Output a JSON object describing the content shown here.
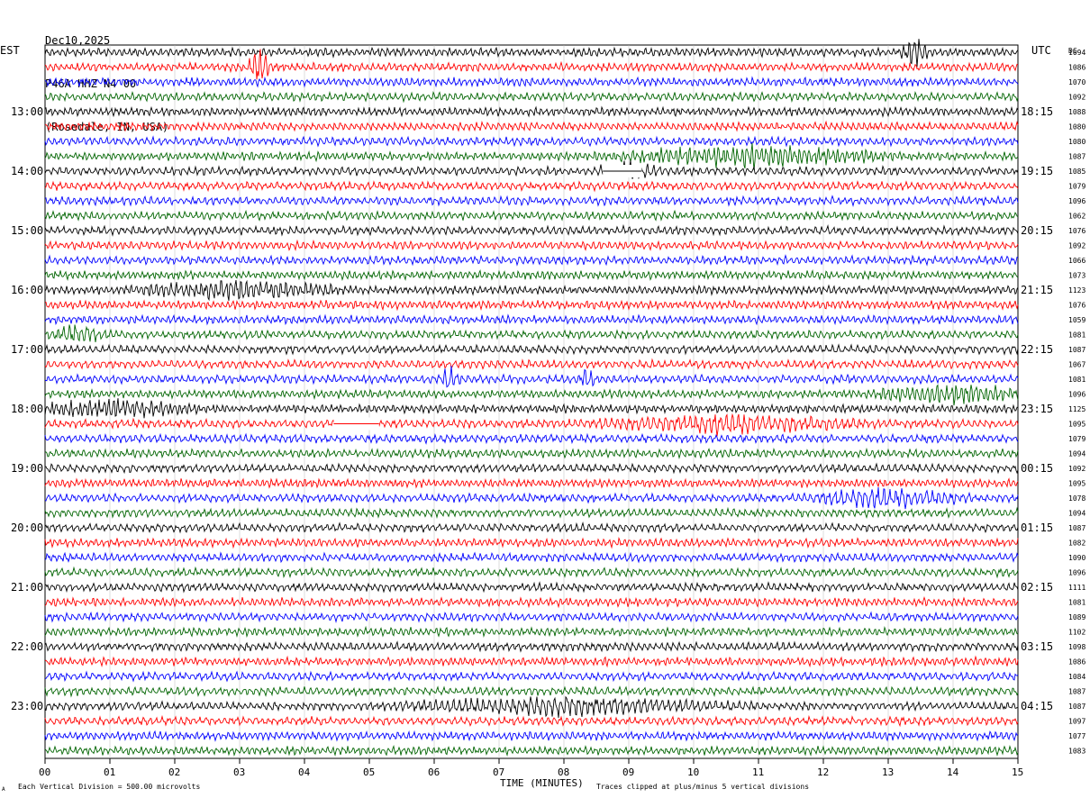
{
  "header": {
    "date": "Dec10,2025",
    "station": "P46A HHZ N4 00",
    "location": "(Rosedale, IN, USA)"
  },
  "left_tz": "EST",
  "right_tz": "UTC",
  "dc_label": "DC",
  "colors": [
    "#000000",
    "#ff0000",
    "#0000ff",
    "#006400"
  ],
  "chart_data": {
    "type": "line",
    "xlabel": "TIME (MINUTES)",
    "x_ticks": [
      "00",
      "01",
      "02",
      "03",
      "04",
      "05",
      "06",
      "07",
      "08",
      "09",
      "10",
      "11",
      "12",
      "13",
      "14",
      "15"
    ],
    "xlim": [
      0,
      15
    ],
    "left_hour_labels": [
      "13:00",
      "14:00",
      "15:00",
      "16:00",
      "17:00",
      "18:00",
      "19:00",
      "20:00",
      "21:00",
      "22:00",
      "23:00"
    ],
    "right_hour_labels": [
      "18:15",
      "19:15",
      "20:15",
      "21:15",
      "22:15",
      "23:15",
      "00:15",
      "01:15",
      "02:15",
      "03:15",
      "04:15"
    ],
    "dc_values": [
      "1094",
      "1086",
      "1070",
      "1092",
      "1088",
      "1080",
      "1080",
      "1087",
      "1085",
      "1079",
      "1096",
      "1062",
      "1076",
      "1092",
      "1066",
      "1073",
      "1123",
      "1076",
      "1059",
      "1081",
      "1087",
      "1067",
      "1081",
      "1096",
      "1125",
      "1095",
      "1079",
      "1094",
      "1092",
      "1095",
      "1078",
      "1094",
      "1087",
      "1082",
      "1090",
      "1096",
      "1111",
      "1081",
      "1089",
      "1102",
      "1098",
      "1086",
      "1084",
      "1087",
      "1087",
      "1097",
      "1077",
      "1083"
    ],
    "events": [
      {
        "trace": 0,
        "minute": 13.4,
        "amp": 3.0,
        "dur": 0.25
      },
      {
        "trace": 1,
        "minute": 3.3,
        "amp": 5.0,
        "dur": 0.2
      },
      {
        "trace": 7,
        "minute": 10.9,
        "amp": 2.0,
        "dur": 2.5
      },
      {
        "trace": 8,
        "minute": 9.0,
        "amp": 1.5,
        "dur": 0.6
      },
      {
        "trace": 16,
        "minute": 3.0,
        "amp": 1.8,
        "dur": 2.0
      },
      {
        "trace": 19,
        "minute": 0.5,
        "amp": 1.6,
        "dur": 0.5
      },
      {
        "trace": 22,
        "minute": 6.25,
        "amp": 2.2,
        "dur": 0.2
      },
      {
        "trace": 22,
        "minute": 8.35,
        "amp": 2.0,
        "dur": 0.2
      },
      {
        "trace": 23,
        "minute": 14.0,
        "amp": 1.8,
        "dur": 1.5
      },
      {
        "trace": 24,
        "minute": 1.0,
        "amp": 1.8,
        "dur": 1.5
      },
      {
        "trace": 25,
        "minute": 10.5,
        "amp": 1.8,
        "dur": 2.5
      },
      {
        "trace": 30,
        "minute": 13.0,
        "amp": 1.8,
        "dur": 1.5
      },
      {
        "trace": 44,
        "minute": 8.0,
        "amp": 1.8,
        "dur": 3.0
      }
    ],
    "gaps": [
      {
        "trace": 8,
        "start_minute": 8.6,
        "end_minute": 9.2
      },
      {
        "trace": 25,
        "start_minute": 4.45,
        "end_minute": 5.15
      }
    ]
  },
  "footer": {
    "scale_note": "Each Vertical Division =  500.00 microvolts",
    "clip_note": "Traces clipped at plus/minus 5 vertical divisions",
    "corner_mark": "A"
  }
}
